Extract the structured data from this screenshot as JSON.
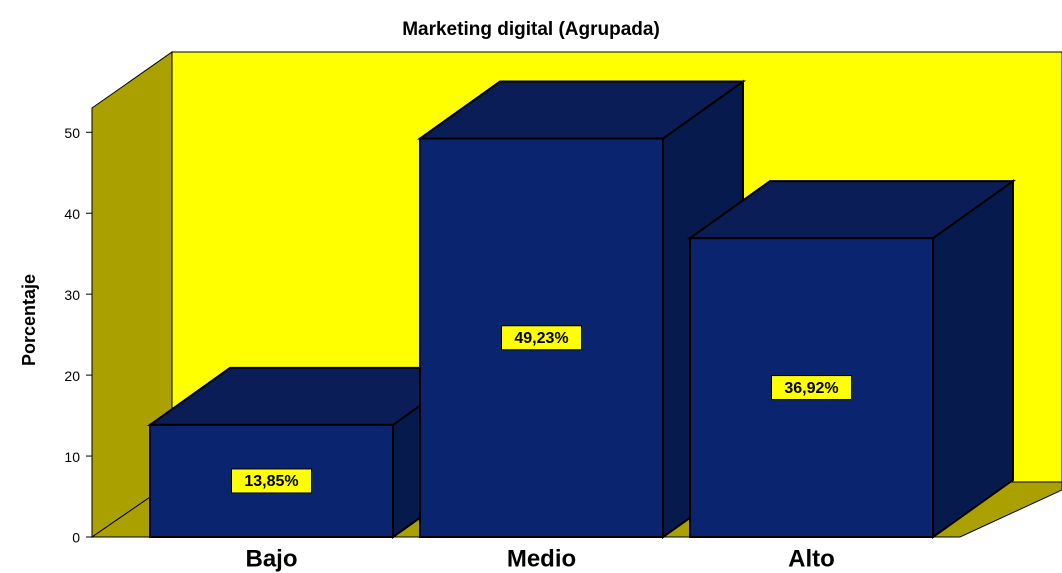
{
  "chart_data": {
    "type": "bar3d",
    "title": "Marketing digital (Agrupada)",
    "y_label": "Porcentaje",
    "categories": [
      "Bajo",
      "Medio",
      "Alto"
    ],
    "values": [
      13.85,
      49.23,
      36.92
    ],
    "value_labels": [
      "13,85%",
      "49,23%",
      "36,92%"
    ],
    "color": "#0a2470",
    "ylim": [
      0,
      53
    ],
    "yticks": [
      0,
      10,
      20,
      30,
      40,
      50
    ]
  }
}
